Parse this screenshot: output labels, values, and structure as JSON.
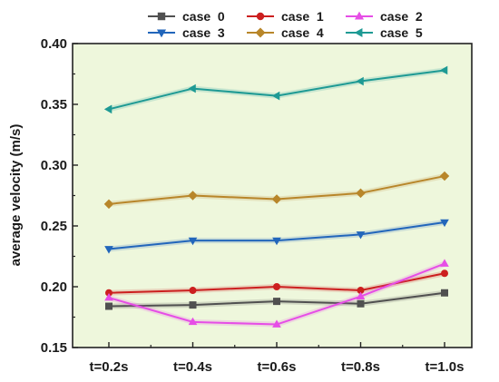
{
  "chart_data": {
    "type": "line",
    "title": "",
    "xlabel": "",
    "ylabel": "average  velocity  (m/s)",
    "categories": [
      "t=0.2s",
      "t=0.4s",
      "t=0.6s",
      "t=0.8s",
      "t=1.0s"
    ],
    "ylim": [
      0.15,
      0.4
    ],
    "yticks": [
      "0.15",
      "0.20",
      "0.25",
      "0.30",
      "0.35",
      "0.40"
    ],
    "grid": false,
    "legend_position": "top",
    "plot_background": "#eef7dc",
    "series": [
      {
        "name": "case  0",
        "color": "#505050",
        "marker": "square",
        "values": [
          0.184,
          0.185,
          0.188,
          0.186,
          0.195
        ]
      },
      {
        "name": "case  1",
        "color": "#cc1f1f",
        "marker": "circle",
        "values": [
          0.195,
          0.197,
          0.2,
          0.197,
          0.211
        ]
      },
      {
        "name": "case  2",
        "color": "#e64ee6",
        "marker": "triangle-up",
        "values": [
          0.191,
          0.171,
          0.169,
          0.192,
          0.219
        ]
      },
      {
        "name": "case  3",
        "color": "#2266bb",
        "marker": "triangle-down",
        "values": [
          0.231,
          0.238,
          0.238,
          0.243,
          0.253
        ]
      },
      {
        "name": "case  4",
        "color": "#b8862a",
        "marker": "diamond",
        "values": [
          0.268,
          0.275,
          0.272,
          0.277,
          0.291
        ]
      },
      {
        "name": "case  5",
        "color": "#1e9a94",
        "marker": "left-triangle",
        "values": [
          0.346,
          0.363,
          0.357,
          0.369,
          0.378
        ]
      }
    ]
  }
}
